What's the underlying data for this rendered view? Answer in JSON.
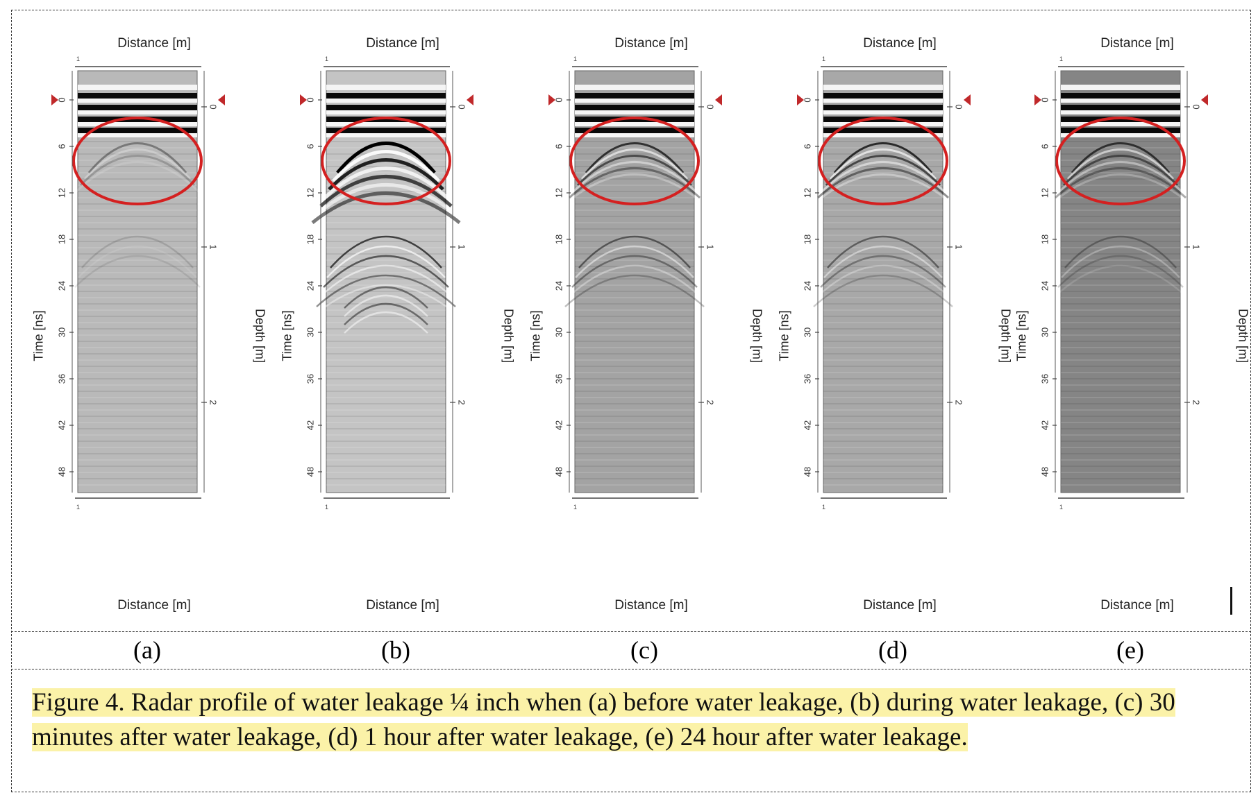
{
  "figure": {
    "caption": "Figure 4. Radar profile of water leakage ¼ inch when (a) before water leakage, (b) during water leakage, (c) 30 minutes after water leakage, (d) 1 hour after water leakage, (e) 24 hour after water leakage.",
    "highlight_color": "#fbf2a8",
    "ellipse_color": "#d42020",
    "panels": [
      {
        "id": "a",
        "letter": "(a)",
        "distance_top": "Distance [m]",
        "distance_bottom": "Distance [m]",
        "time_label": "Time [ns]",
        "depth_label": "Depth [m]",
        "background": "#b9b9b9",
        "anomaly_strength": 0.35,
        "deep_strength": 0.15
      },
      {
        "id": "b",
        "letter": "(b)",
        "distance_top": "Distance [m]",
        "distance_bottom": "Distance [m]",
        "time_label": "Time [ns]",
        "depth_label": "Depth [m]",
        "background": "#c4c4c4",
        "anomaly_strength": 1.0,
        "deep_strength": 0.75
      },
      {
        "id": "c",
        "letter": "(c)",
        "distance_top": "Distance [m]",
        "distance_bottom": "Distance [m]",
        "time_label": "Time [ns]",
        "depth_label": "Depth [m]",
        "background": "#a3a3a3",
        "anomaly_strength": 0.7,
        "deep_strength": 0.55
      },
      {
        "id": "d",
        "letter": "(d)",
        "distance_top": "Distance [m]",
        "distance_bottom": "Distance [m]",
        "time_label": "Time [ns]",
        "depth_label": "Depth [m]",
        "background": "#a8a8a8",
        "anomaly_strength": 0.75,
        "deep_strength": 0.5
      },
      {
        "id": "e",
        "letter": "(e)",
        "distance_top": "Distance [m]",
        "distance_bottom": "Distance [m]",
        "time_label": "Time [ns]",
        "depth_label": "Depth [m]",
        "background": "#858585",
        "anomaly_strength": 0.65,
        "deep_strength": 0.35
      }
    ],
    "time_ticks": [
      "0",
      "6",
      "12",
      "18",
      "24",
      "30",
      "36",
      "42",
      "48"
    ],
    "depth_ticks": [
      "0",
      "1",
      "2"
    ],
    "distance_tick": "1"
  }
}
